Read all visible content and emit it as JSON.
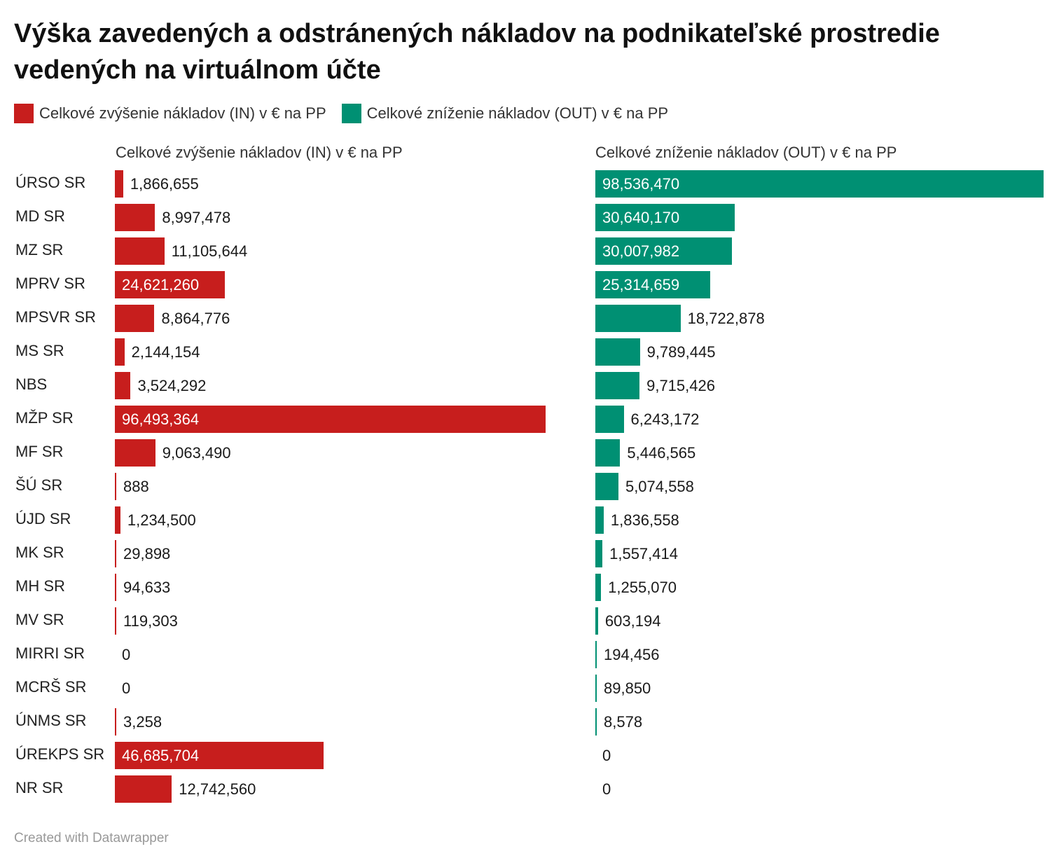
{
  "title": "Výška zavedených a odstránených nákladov na podnikateľské prostredie vedených na virtuálnom účte",
  "legend": [
    {
      "label": "Celkové zvýšenie nákladov (IN) v € na PP",
      "color": "#c71e1d"
    },
    {
      "label": "Celkové zníženie nákladov (OUT) v € na PP",
      "color": "#009073"
    }
  ],
  "footer": "Created with Datawrapper",
  "chart_data": {
    "type": "bar",
    "orientation": "horizontal",
    "categories": [
      "ÚRSO SR",
      "MD SR",
      "MZ SR",
      "MPRV SR",
      "MPSVR SR",
      "MS SR",
      "NBS",
      "MŽP SR",
      "MF SR",
      "ŠÚ SR",
      "ÚJD SR",
      "MK SR",
      "MH SR",
      "MV SR",
      "MIRRI SR",
      "MCRŠ SR",
      "ÚNMS SR",
      "ÚREKPS SR",
      "NR SR"
    ],
    "series": [
      {
        "name": "Celkové zvýšenie nákladov (IN) v € na PP",
        "color": "#c71e1d",
        "values": [
          1866655,
          8997478,
          11105644,
          24621260,
          8864776,
          2144154,
          3524292,
          96493364,
          9063490,
          888,
          1234500,
          29898,
          94633,
          119303,
          0,
          0,
          3258,
          46685704,
          12742560
        ],
        "labels": [
          "1,866,655",
          "8,997,478",
          "11,105,644",
          "24,621,260",
          "8,864,776",
          "2,144,154",
          "3,524,292",
          "96,493,364",
          "9,063,490",
          "888",
          "1,234,500",
          "29,898",
          "94,633",
          "119,303",
          "0",
          "0",
          "3,258",
          "46,685,704",
          "12,742,560"
        ]
      },
      {
        "name": "Celkové zníženie nákladov (OUT) v € na PP",
        "color": "#009073",
        "values": [
          98536470,
          30640170,
          30007982,
          25314659,
          18722878,
          9789445,
          9715426,
          6243172,
          5446565,
          5074558,
          1836558,
          1557414,
          1255070,
          603194,
          194456,
          89850,
          8578,
          0,
          0
        ],
        "labels": [
          "98,536,470",
          "30,640,170",
          "30,007,982",
          "25,314,659",
          "18,722,878",
          "9,789,445",
          "9,715,426",
          "6,243,172",
          "5,446,565",
          "5,074,558",
          "1,836,558",
          "1,557,414",
          "1,255,070",
          "603,194",
          "194,456",
          "89,850",
          "8,578",
          "0",
          "0"
        ]
      }
    ],
    "legend_position": "top-left",
    "grid": false
  }
}
